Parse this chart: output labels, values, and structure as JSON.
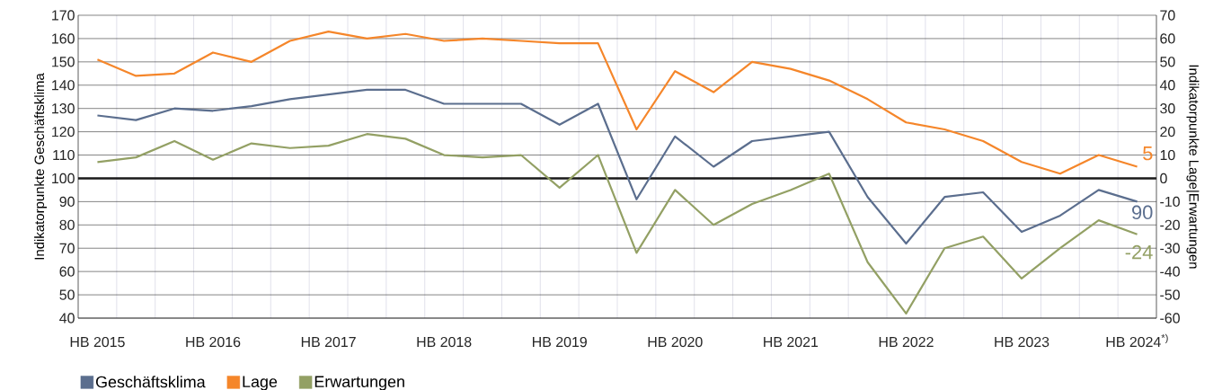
{
  "chart_data": {
    "type": "line",
    "categories": [
      "HB 2015",
      null,
      null,
      "HB 2016",
      null,
      null,
      "HB 2017",
      null,
      null,
      "HB 2018",
      null,
      null,
      "HB 2019",
      null,
      null,
      "HB 2020",
      null,
      null,
      "HB 2021",
      null,
      null,
      "HB 2022",
      null,
      null,
      "HB 2023",
      null,
      null,
      "HB 2024$^{*)}$"
    ],
    "ylabel": "Indikatorpunkte Geschäftsklima",
    "y2label": "Indikatorpunkte Lage|Erwartungen",
    "ylim": [
      40,
      170
    ],
    "yticks": [
      40,
      50,
      60,
      70,
      80,
      90,
      100,
      110,
      120,
      130,
      140,
      150,
      160,
      170
    ],
    "y2lim": [
      -60,
      70
    ],
    "y2ticks": [
      -60,
      -50,
      -40,
      -30,
      -20,
      -10,
      0,
      10,
      20,
      30,
      40,
      50,
      60,
      70
    ],
    "grid": true,
    "legend": "bottom",
    "marker": "none",
    "line_style": "solid",
    "ref_lines": [
      {
        "axis": "y",
        "value": 100,
        "color": "#1a1a1a"
      }
    ],
    "series": [
      {
        "name": "Geschäftsklima",
        "color": "#5b6e8e",
        "values": [
          127,
          125,
          130,
          129,
          131,
          134,
          136,
          138,
          138,
          132,
          132,
          132,
          123,
          132,
          91,
          118,
          105,
          116,
          118,
          120,
          92,
          72,
          92,
          94,
          77,
          84,
          95,
          90
        ],
        "value_labels": [
          null,
          null,
          null,
          null,
          null,
          null,
          null,
          null,
          null,
          null,
          null,
          null,
          null,
          null,
          null,
          null,
          null,
          null,
          null,
          null,
          null,
          null,
          null,
          null,
          null,
          null,
          null,
          "90"
        ]
      },
      {
        "name": "Lage",
        "color": "#f5862a",
        "axis": "y2",
        "values": [
          51,
          44,
          45,
          54,
          50,
          59,
          63,
          60,
          62,
          59,
          60,
          59,
          58,
          58,
          21,
          46,
          37,
          50,
          47,
          42,
          34,
          24,
          21,
          16,
          7,
          2,
          10,
          5
        ],
        "value_labels": [
          null,
          null,
          null,
          null,
          null,
          null,
          null,
          null,
          null,
          null,
          null,
          null,
          null,
          null,
          null,
          null,
          null,
          null,
          null,
          null,
          null,
          null,
          null,
          null,
          null,
          null,
          null,
          "5"
        ]
      },
      {
        "name": "Erwartungen",
        "color": "#93a064",
        "axis": "y2",
        "values": [
          7,
          9,
          16,
          8,
          15,
          13,
          14,
          19,
          17,
          10,
          9,
          10,
          -4,
          10,
          -32,
          -5,
          -20,
          -11,
          -5,
          2,
          -36,
          -58,
          -30,
          -25,
          -43,
          -30,
          -18,
          -24
        ],
        "value_labels": [
          null,
          null,
          null,
          null,
          null,
          null,
          null,
          null,
          null,
          null,
          null,
          null,
          null,
          null,
          null,
          null,
          null,
          null,
          null,
          null,
          null,
          null,
          null,
          null,
          null,
          null,
          null,
          "-24"
        ]
      }
    ]
  }
}
